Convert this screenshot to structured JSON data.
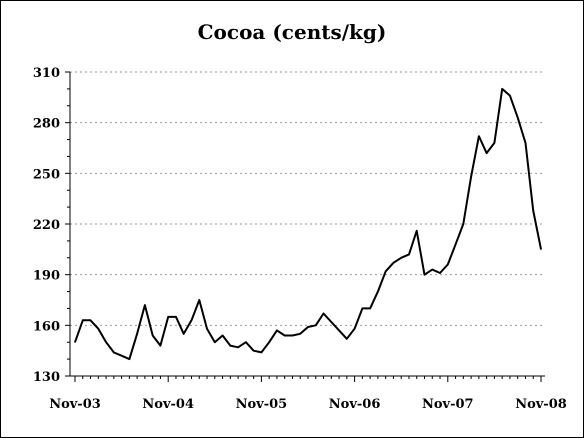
{
  "chart_data": {
    "type": "line",
    "title": "Cocoa (cents/kg)",
    "xlabel": "",
    "ylabel": "",
    "ylim": [
      130,
      310
    ],
    "yticks": [
      130,
      160,
      190,
      220,
      250,
      280,
      310
    ],
    "xticks": [
      "Nov-03",
      "Nov-04",
      "Nov-05",
      "Nov-06",
      "Nov-07",
      "Nov-08"
    ],
    "grid": true,
    "legend": "none",
    "line_color": "#000000",
    "grid_color": "#999999",
    "series": [
      {
        "values": [
          150,
          163,
          163,
          158,
          150,
          144,
          142,
          140,
          155,
          172,
          154,
          148,
          165,
          165,
          155,
          163,
          175,
          158,
          150,
          154,
          148,
          147,
          150,
          145,
          144,
          150,
          157,
          154,
          154,
          155,
          159,
          160,
          167,
          162,
          157,
          152,
          158,
          170,
          170,
          180,
          192,
          197,
          200,
          202,
          216,
          190,
          193,
          191,
          196,
          208,
          220,
          248,
          272,
          262,
          268,
          300,
          296,
          283,
          268,
          228,
          205
        ]
      }
    ]
  }
}
